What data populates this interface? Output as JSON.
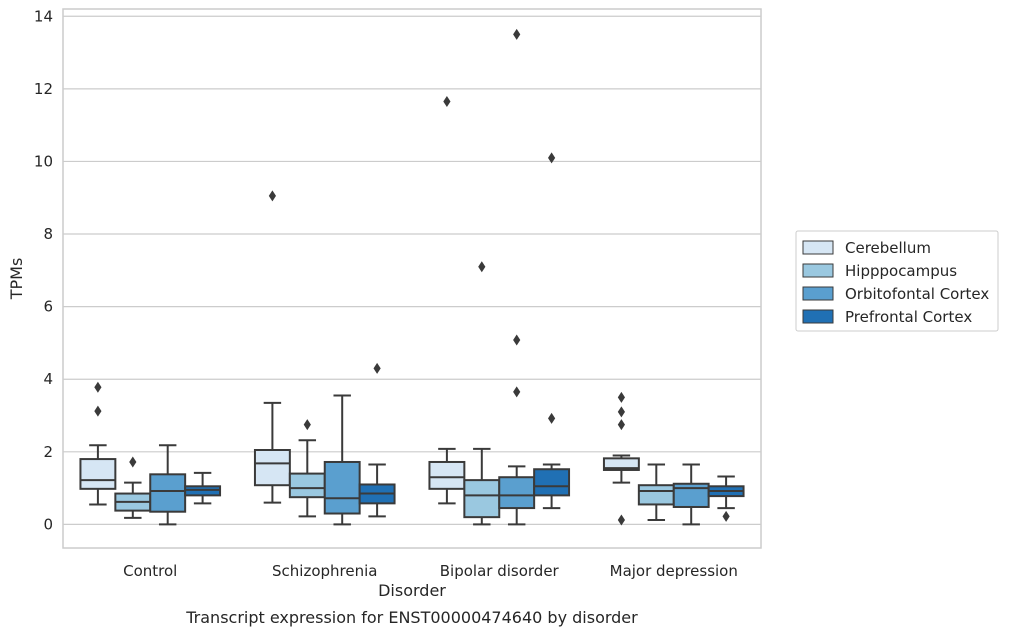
{
  "chart_data": {
    "type": "boxplot",
    "caption": "Transcript expression for ENST00000474640 by disorder",
    "xlabel": "Disorder",
    "ylabel": "TPMs",
    "ylim": [
      -0.65,
      14.2
    ],
    "yticks": [
      0,
      2,
      4,
      6,
      8,
      10,
      12,
      14
    ],
    "ytick_labels": [
      "0",
      "2",
      "4",
      "6",
      "8",
      "10",
      "12",
      "14"
    ],
    "grid": "horizontal",
    "legend_position": "right",
    "categories": [
      "Control",
      "Schizophrenia",
      "Bipolar disorder",
      "Major depression"
    ],
    "series": [
      {
        "name": "Cerebellum",
        "color": "#d6e6f4",
        "boxes": [
          {
            "whislo": 0.55,
            "q1": 0.98,
            "med": 1.22,
            "q3": 1.8,
            "whishi": 2.18,
            "fliers": [
              3.12,
              3.78
            ]
          },
          {
            "whislo": 0.6,
            "q1": 1.08,
            "med": 1.68,
            "q3": 2.05,
            "whishi": 3.35,
            "fliers": [
              9.05
            ]
          },
          {
            "whislo": 0.58,
            "q1": 0.98,
            "med": 1.3,
            "q3": 1.72,
            "whishi": 2.08,
            "fliers": [
              11.65
            ]
          },
          {
            "whislo": 1.15,
            "q1": 1.5,
            "med": 1.55,
            "q3": 1.82,
            "whishi": 1.9,
            "fliers": [
              0.12,
              2.75,
              3.1,
              3.5
            ]
          }
        ]
      },
      {
        "name": "Hipppocampus",
        "color": "#9ac8e0",
        "boxes": [
          {
            "whislo": 0.18,
            "q1": 0.38,
            "med": 0.62,
            "q3": 0.85,
            "whishi": 1.15,
            "fliers": [
              1.72
            ]
          },
          {
            "whislo": 0.22,
            "q1": 0.75,
            "med": 1.0,
            "q3": 1.4,
            "whishi": 2.32,
            "fliers": [
              2.75
            ]
          },
          {
            "whislo": 0.0,
            "q1": 0.2,
            "med": 0.8,
            "q3": 1.22,
            "whishi": 2.08,
            "fliers": [
              7.1
            ]
          },
          {
            "whislo": 0.12,
            "q1": 0.55,
            "med": 0.92,
            "q3": 1.08,
            "whishi": 1.65,
            "fliers": []
          }
        ]
      },
      {
        "name": "Orbitofontal Cortex",
        "color": "#5a9fcf",
        "boxes": [
          {
            "whislo": 0.0,
            "q1": 0.35,
            "med": 0.92,
            "q3": 1.38,
            "whishi": 2.18,
            "fliers": []
          },
          {
            "whislo": 0.0,
            "q1": 0.3,
            "med": 0.72,
            "q3": 1.72,
            "whishi": 3.55,
            "fliers": []
          },
          {
            "whislo": 0.0,
            "q1": 0.45,
            "med": 0.8,
            "q3": 1.3,
            "whishi": 1.6,
            "fliers": [
              3.65,
              5.08,
              13.5
            ]
          },
          {
            "whislo": 0.0,
            "q1": 0.48,
            "med": 1.0,
            "q3": 1.12,
            "whishi": 1.65,
            "fliers": []
          }
        ]
      },
      {
        "name": "Prefrontal Cortex",
        "color": "#2070b4",
        "boxes": [
          {
            "whislo": 0.58,
            "q1": 0.8,
            "med": 0.95,
            "q3": 1.05,
            "whishi": 1.42,
            "fliers": []
          },
          {
            "whislo": 0.22,
            "q1": 0.58,
            "med": 0.85,
            "q3": 1.1,
            "whishi": 1.65,
            "fliers": [
              4.3
            ]
          },
          {
            "whislo": 0.45,
            "q1": 0.8,
            "med": 1.05,
            "q3": 1.52,
            "whishi": 1.65,
            "fliers": [
              2.92,
              10.1
            ]
          },
          {
            "whislo": 0.45,
            "q1": 0.78,
            "med": 0.92,
            "q3": 1.05,
            "whishi": 1.32,
            "fliers": [
              0.22
            ]
          }
        ]
      }
    ]
  }
}
